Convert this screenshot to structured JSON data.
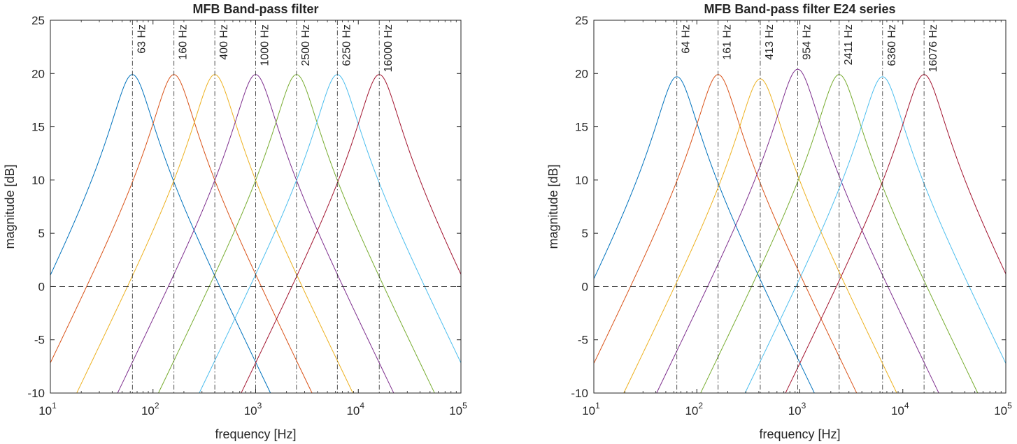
{
  "chart_data": [
    {
      "type": "line",
      "title": "MFB Band-pass filter",
      "xlabel": "frequency [Hz]",
      "ylabel": "magnitude [dB]",
      "xscale": "log",
      "xlim": [
        10,
        100000
      ],
      "ylim": [
        -10,
        25
      ],
      "yticks": [
        -10,
        -5,
        0,
        5,
        10,
        15,
        20,
        25
      ],
      "xticks": [
        10,
        100,
        1000,
        10000,
        100000
      ],
      "xtick_labels": [
        {
          "base": "10",
          "exp": "1"
        },
        {
          "base": "10",
          "exp": "2"
        },
        {
          "base": "10",
          "exp": "3"
        },
        {
          "base": "10",
          "exp": "4"
        },
        {
          "base": "10",
          "exp": "5"
        }
      ],
      "grid": false,
      "reference_line": {
        "y": 0,
        "style": "dashed",
        "color": "#262626"
      },
      "series": [
        {
          "f0": 63,
          "peak": 19.9,
          "label": "63 Hz",
          "color": "#0072BD"
        },
        {
          "f0": 160,
          "peak": 19.9,
          "label": "160 Hz",
          "color": "#D95319"
        },
        {
          "f0": 400,
          "peak": 19.9,
          "label": "400 Hz",
          "color": "#EDB120"
        },
        {
          "f0": 1000,
          "peak": 19.9,
          "label": "1000 Hz",
          "color": "#7E2F8E"
        },
        {
          "f0": 2500,
          "peak": 19.9,
          "label": "2500 Hz",
          "color": "#77AC30"
        },
        {
          "f0": 6250,
          "peak": 19.9,
          "label": "6250 Hz",
          "color": "#4DBEEE"
        },
        {
          "f0": 16000,
          "peak": 19.9,
          "label": "16000 Hz",
          "color": "#A2142F"
        }
      ]
    },
    {
      "type": "line",
      "title": "MFB Band-pass filter E24 series",
      "xlabel": "frequency [Hz]",
      "ylabel": "magnitude [dB]",
      "xscale": "log",
      "xlim": [
        10,
        100000
      ],
      "ylim": [
        -10,
        25
      ],
      "yticks": [
        -10,
        -5,
        0,
        5,
        10,
        15,
        20,
        25
      ],
      "xticks": [
        10,
        100,
        1000,
        10000,
        100000
      ],
      "xtick_labels": [
        {
          "base": "10",
          "exp": "1"
        },
        {
          "base": "10",
          "exp": "2"
        },
        {
          "base": "10",
          "exp": "3"
        },
        {
          "base": "10",
          "exp": "4"
        },
        {
          "base": "10",
          "exp": "5"
        }
      ],
      "grid": false,
      "reference_line": {
        "y": 0,
        "style": "dashed",
        "color": "#262626"
      },
      "series": [
        {
          "f0": 64,
          "peak": 19.7,
          "label": "64 Hz",
          "color": "#0072BD"
        },
        {
          "f0": 161,
          "peak": 19.9,
          "label": "161 Hz",
          "color": "#D95319"
        },
        {
          "f0": 413,
          "peak": 19.5,
          "label": "413 Hz",
          "color": "#EDB120"
        },
        {
          "f0": 954,
          "peak": 20.4,
          "label": "954 Hz",
          "color": "#7E2F8E"
        },
        {
          "f0": 2411,
          "peak": 19.9,
          "label": "2411 Hz",
          "color": "#77AC30"
        },
        {
          "f0": 6360,
          "peak": 19.7,
          "label": "6360 Hz",
          "color": "#4DBEEE"
        },
        {
          "f0": 16076,
          "peak": 19.9,
          "label": "16076 Hz",
          "color": "#A2142F"
        }
      ]
    }
  ]
}
